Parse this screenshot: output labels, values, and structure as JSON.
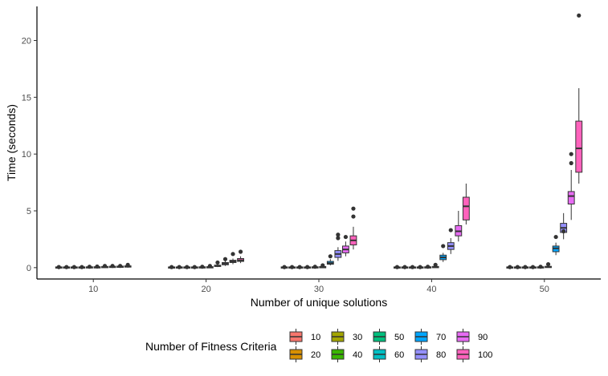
{
  "chart_data": {
    "type": "boxplot",
    "xlabel": "Number of unique solutions",
    "ylabel": "Time (seconds)",
    "ylim": [
      -1,
      23
    ],
    "yticks": [
      0,
      5,
      10,
      15,
      20
    ],
    "categories": [
      "10",
      "20",
      "30",
      "40",
      "50"
    ],
    "legend": {
      "title": "Number of Fitness Criteria",
      "placement": "bottom"
    },
    "series": [
      {
        "name": "10",
        "color": "#F8766D",
        "boxes": [
          {
            "min": 0,
            "q1": 0,
            "median": 0.01,
            "q3": 0.02,
            "max": 0.04,
            "outliers": [
              0.05
            ]
          },
          {
            "min": 0,
            "q1": 0,
            "median": 0.01,
            "q3": 0.02,
            "max": 0.04,
            "outliers": [
              0.05
            ]
          },
          {
            "min": 0,
            "q1": 0,
            "median": 0.01,
            "q3": 0.02,
            "max": 0.04,
            "outliers": [
              0.05
            ]
          },
          {
            "min": 0,
            "q1": 0,
            "median": 0.01,
            "q3": 0.02,
            "max": 0.04,
            "outliers": [
              0.05
            ]
          },
          {
            "min": 0,
            "q1": 0,
            "median": 0.01,
            "q3": 0.02,
            "max": 0.04,
            "outliers": [
              0.05
            ]
          }
        ]
      },
      {
        "name": "20",
        "color": "#D89000",
        "boxes": [
          {
            "min": 0,
            "q1": 0,
            "median": 0.01,
            "q3": 0.02,
            "max": 0.04,
            "outliers": [
              0.05
            ]
          },
          {
            "min": 0,
            "q1": 0,
            "median": 0.01,
            "q3": 0.02,
            "max": 0.04,
            "outliers": [
              0.05
            ]
          },
          {
            "min": 0,
            "q1": 0,
            "median": 0.01,
            "q3": 0.02,
            "max": 0.04,
            "outliers": [
              0.05
            ]
          },
          {
            "min": 0,
            "q1": 0,
            "median": 0.01,
            "q3": 0.02,
            "max": 0.04,
            "outliers": [
              0.05
            ]
          },
          {
            "min": 0,
            "q1": 0,
            "median": 0.01,
            "q3": 0.02,
            "max": 0.04,
            "outliers": [
              0.05
            ]
          }
        ]
      },
      {
        "name": "30",
        "color": "#A3A500",
        "boxes": [
          {
            "min": 0,
            "q1": 0,
            "median": 0.01,
            "q3": 0.02,
            "max": 0.04,
            "outliers": [
              0.05
            ]
          },
          {
            "min": 0,
            "q1": 0,
            "median": 0.01,
            "q3": 0.02,
            "max": 0.04,
            "outliers": [
              0.05
            ]
          },
          {
            "min": 0,
            "q1": 0,
            "median": 0.01,
            "q3": 0.02,
            "max": 0.04,
            "outliers": [
              0.05
            ]
          },
          {
            "min": 0,
            "q1": 0,
            "median": 0.01,
            "q3": 0.02,
            "max": 0.04,
            "outliers": [
              0.05
            ]
          },
          {
            "min": 0,
            "q1": 0,
            "median": 0.01,
            "q3": 0.02,
            "max": 0.04,
            "outliers": [
              0.05
            ]
          }
        ]
      },
      {
        "name": "40",
        "color": "#39B600",
        "boxes": [
          {
            "min": 0,
            "q1": 0,
            "median": 0.01,
            "q3": 0.02,
            "max": 0.04,
            "outliers": [
              0.05
            ]
          },
          {
            "min": 0,
            "q1": 0,
            "median": 0.01,
            "q3": 0.02,
            "max": 0.04,
            "outliers": [
              0.05
            ]
          },
          {
            "min": 0,
            "q1": 0,
            "median": 0.01,
            "q3": 0.02,
            "max": 0.04,
            "outliers": [
              0.05
            ]
          },
          {
            "min": 0,
            "q1": 0,
            "median": 0.01,
            "q3": 0.02,
            "max": 0.04,
            "outliers": [
              0.05
            ]
          },
          {
            "min": 0,
            "q1": 0,
            "median": 0.01,
            "q3": 0.02,
            "max": 0.04,
            "outliers": [
              0.05
            ]
          }
        ]
      },
      {
        "name": "50",
        "color": "#00BF7D",
        "boxes": [
          {
            "min": 0,
            "q1": 0.01,
            "median": 0.02,
            "q3": 0.03,
            "max": 0.05,
            "outliers": [
              0.08
            ]
          },
          {
            "min": 0,
            "q1": 0.01,
            "median": 0.02,
            "q3": 0.03,
            "max": 0.05,
            "outliers": [
              0.08
            ]
          },
          {
            "min": 0,
            "q1": 0.01,
            "median": 0.02,
            "q3": 0.03,
            "max": 0.05,
            "outliers": [
              0.08
            ]
          },
          {
            "min": 0,
            "q1": 0.01,
            "median": 0.02,
            "q3": 0.03,
            "max": 0.05,
            "outliers": [
              0.08
            ]
          },
          {
            "min": 0,
            "q1": 0.01,
            "median": 0.02,
            "q3": 0.03,
            "max": 0.05,
            "outliers": [
              0.08
            ]
          }
        ]
      },
      {
        "name": "60",
        "color": "#00BFC4",
        "boxes": [
          {
            "min": 0,
            "q1": 0.01,
            "median": 0.02,
            "q3": 0.04,
            "max": 0.06,
            "outliers": [
              0.1
            ]
          },
          {
            "min": 0,
            "q1": 0.01,
            "median": 0.03,
            "q3": 0.05,
            "max": 0.08,
            "outliers": [
              0.15
            ]
          },
          {
            "min": 0,
            "q1": 0.02,
            "median": 0.04,
            "q3": 0.06,
            "max": 0.1,
            "outliers": [
              0.2
            ]
          },
          {
            "min": 0,
            "q1": 0.02,
            "median": 0.05,
            "q3": 0.08,
            "max": 0.12,
            "outliers": [
              0.25
            ]
          },
          {
            "min": 0,
            "q1": 0.02,
            "median": 0.06,
            "q3": 0.1,
            "max": 0.15,
            "outliers": [
              0.3
            ]
          }
        ]
      },
      {
        "name": "70",
        "color": "#00A5FF",
        "boxes": [
          {
            "min": 0,
            "q1": 0.02,
            "median": 0.05,
            "q3": 0.08,
            "max": 0.12,
            "outliers": [
              0.15
            ]
          },
          {
            "min": 0.05,
            "q1": 0.1,
            "median": 0.15,
            "q3": 0.22,
            "max": 0.3,
            "outliers": [
              0.45
            ]
          },
          {
            "min": 0.2,
            "q1": 0.3,
            "median": 0.4,
            "q3": 0.55,
            "max": 0.75,
            "outliers": [
              1.0
            ]
          },
          {
            "min": 0.5,
            "q1": 0.7,
            "median": 0.9,
            "q3": 1.1,
            "max": 1.3,
            "outliers": [
              1.9
            ]
          },
          {
            "min": 1.1,
            "q1": 1.4,
            "median": 1.7,
            "q3": 1.9,
            "max": 2.2,
            "outliers": [
              2.7
            ]
          }
        ]
      },
      {
        "name": "80",
        "color": "#9590FF",
        "boxes": [
          {
            "min": 0,
            "q1": 0.03,
            "median": 0.06,
            "q3": 0.1,
            "max": 0.15,
            "outliers": [
              0.15
            ]
          },
          {
            "min": 0.15,
            "q1": 0.25,
            "median": 0.35,
            "q3": 0.45,
            "max": 0.6,
            "outliers": [
              0.75
            ]
          },
          {
            "min": 0.6,
            "q1": 0.9,
            "median": 1.2,
            "q3": 1.5,
            "max": 1.8,
            "outliers": [
              2.6,
              2.9
            ]
          },
          {
            "min": 1.2,
            "q1": 1.6,
            "median": 1.9,
            "q3": 2.2,
            "max": 2.6,
            "outliers": [
              3.3
            ]
          },
          {
            "min": 2.5,
            "q1": 3.1,
            "median": 3.5,
            "q3": 3.9,
            "max": 4.8,
            "outliers": [
              3.2
            ]
          }
        ]
      },
      {
        "name": "90",
        "color": "#E76BF3",
        "boxes": [
          {
            "min": 0,
            "q1": 0.04,
            "median": 0.08,
            "q3": 0.12,
            "max": 0.18,
            "outliers": [
              0.15
            ]
          },
          {
            "min": 0.3,
            "q1": 0.45,
            "median": 0.55,
            "q3": 0.65,
            "max": 0.8,
            "outliers": [
              1.2
            ]
          },
          {
            "min": 1.0,
            "q1": 1.3,
            "median": 1.6,
            "q3": 1.9,
            "max": 2.3,
            "outliers": [
              2.7
            ]
          },
          {
            "min": 2.3,
            "q1": 2.8,
            "median": 3.2,
            "q3": 3.7,
            "max": 5.0,
            "outliers": []
          },
          {
            "min": 4.2,
            "q1": 5.6,
            "median": 6.3,
            "q3": 6.7,
            "max": 8.6,
            "outliers": [
              9.2,
              10.0
            ]
          }
        ]
      },
      {
        "name": "100",
        "color": "#FF62BC",
        "boxes": [
          {
            "min": 0,
            "q1": 0.05,
            "median": 0.1,
            "q3": 0.15,
            "max": 0.2,
            "outliers": [
              0.25
            ]
          },
          {
            "min": 0.4,
            "q1": 0.55,
            "median": 0.65,
            "q3": 0.8,
            "max": 1.0,
            "outliers": [
              1.4
            ]
          },
          {
            "min": 1.6,
            "q1": 2.0,
            "median": 2.4,
            "q3": 2.8,
            "max": 3.6,
            "outliers": [
              4.5,
              5.2
            ]
          },
          {
            "min": 3.8,
            "q1": 4.2,
            "median": 5.4,
            "q3": 6.2,
            "max": 7.4,
            "outliers": []
          },
          {
            "min": 7.4,
            "q1": 8.4,
            "median": 10.5,
            "q3": 12.9,
            "max": 15.8,
            "outliers": [
              22.2
            ]
          }
        ]
      }
    ]
  }
}
